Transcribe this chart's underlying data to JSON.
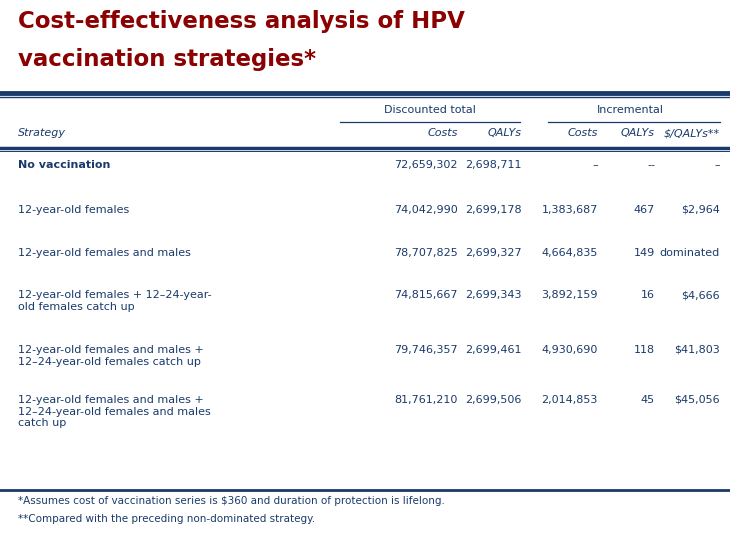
{
  "title_line1": "Cost-effectiveness analysis of HPV",
  "title_line2": "vaccination strategies*",
  "title_color": "#8B0000",
  "background_color": "#FFFFFF",
  "header_group1": "Discounted total",
  "header_group2": "Incremental",
  "col_headers": [
    "Strategy",
    "Costs",
    "QALYs",
    "Costs",
    "QALYs",
    "$/QALYs**"
  ],
  "text_color": "#1a3a6b",
  "divider_color": "#1a3a6b",
  "rows": [
    {
      "strategy": "No vaccination",
      "disc_costs": "72,659,302",
      "disc_qalys": "2,698,711",
      "inc_costs": "–",
      "inc_qalys": "--",
      "dollar_qaly": "–",
      "bold": true
    },
    {
      "strategy": "12-year-old females",
      "disc_costs": "74,042,990",
      "disc_qalys": "2,699,178",
      "inc_costs": "1,383,687",
      "inc_qalys": "467",
      "dollar_qaly": "$2,964",
      "bold": false
    },
    {
      "strategy": "12-year-old females and males",
      "disc_costs": "78,707,825",
      "disc_qalys": "2,699,327",
      "inc_costs": "4,664,835",
      "inc_qalys": "149",
      "dollar_qaly": "dominated",
      "bold": false
    },
    {
      "strategy": "12-year-old females + 12–24-year-\nold females catch up",
      "disc_costs": "74,815,667",
      "disc_qalys": "2,699,343",
      "inc_costs": "3,892,159",
      "inc_qalys": "16",
      "dollar_qaly": "$4,666",
      "bold": false
    },
    {
      "strategy": "12-year-old females and males +\n12–24-year-old females catch up",
      "disc_costs": "79,746,357",
      "disc_qalys": "2,699,461",
      "inc_costs": "4,930,690",
      "inc_qalys": "118",
      "dollar_qaly": "$41,803",
      "bold": false
    },
    {
      "strategy": "12-year-old females and males +\n12–24-year-old females and males\ncatch up",
      "disc_costs": "81,761,210",
      "disc_qalys": "2,699,506",
      "inc_costs": "2,014,853",
      "inc_qalys": "45",
      "dollar_qaly": "$45,056",
      "bold": false
    }
  ],
  "footnote1": "*Assumes cost of vaccination series is $360 and duration of protection is lifelong.",
  "footnote2": "**Compared with the preceding non-dominated strategy."
}
